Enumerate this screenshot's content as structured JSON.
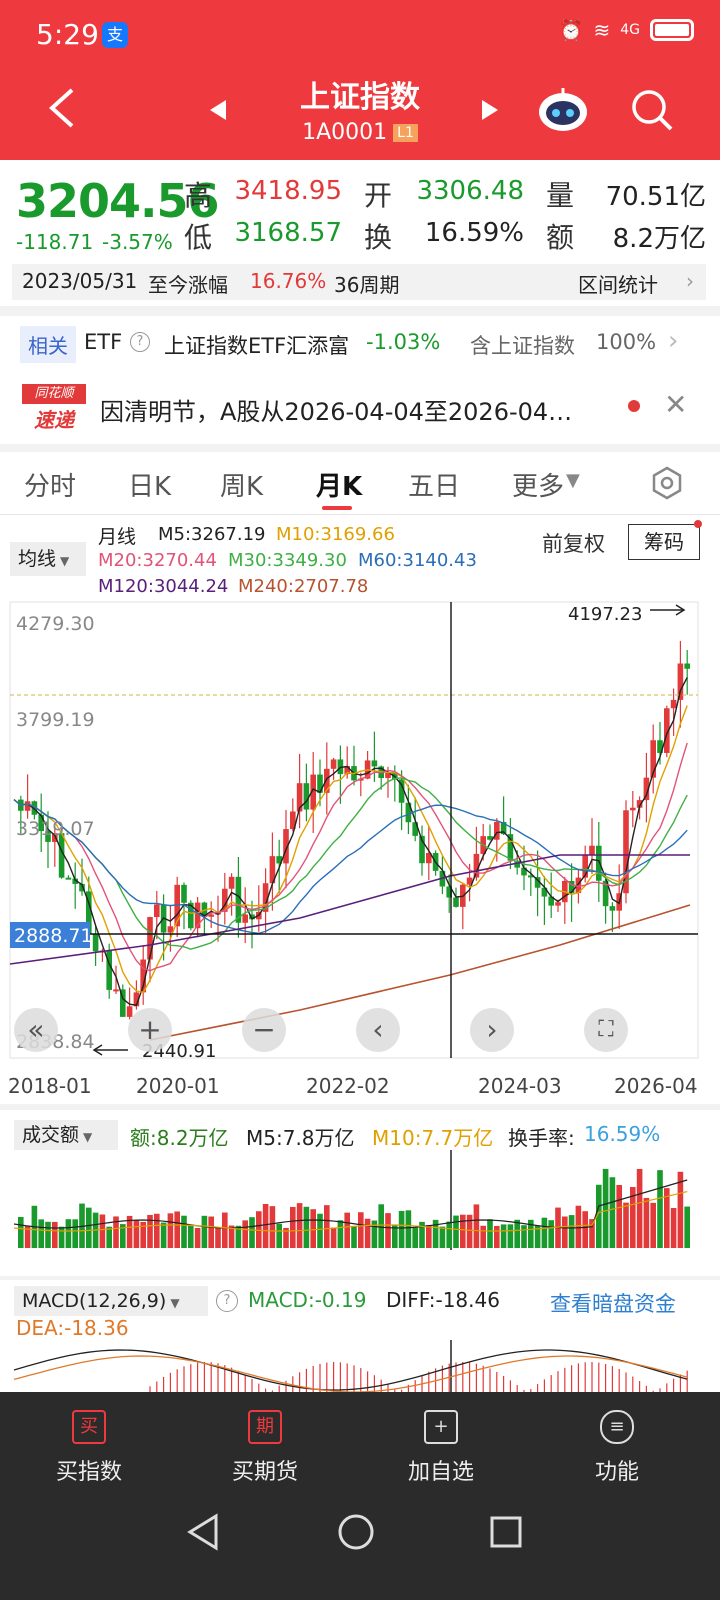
{
  "status_bar": {
    "time": "5:29",
    "app_badge": "支",
    "network": "4G"
  },
  "header": {
    "title": "上证指数",
    "code": "1A0001",
    "level": "L1"
  },
  "quote": {
    "price": "3204.56",
    "change": "-118.71",
    "change_pct": "-3.57%",
    "labels": {
      "high": "高",
      "low": "低",
      "open": "开",
      "turnover": "换",
      "volume": "量",
      "amount": "额"
    },
    "high": "3418.95",
    "low": "3168.57",
    "open": "3306.48",
    "turnover_rate": "16.59%",
    "volume": "70.51亿",
    "amount": "8.2万亿"
  },
  "range_bar": {
    "date": "2023/05/31",
    "label": "至今涨幅",
    "pct": "16.76%",
    "periods": "36周期",
    "stats": "区间统计"
  },
  "etf": {
    "tag": "相关",
    "label": "ETF",
    "name": "上证指数ETF汇添富",
    "change": "-1.03%",
    "holding": "含上证指数",
    "holding_pct": "100%"
  },
  "news": {
    "logo_top": "同花顺",
    "logo_bottom": "速递",
    "text": "因清明节，A股从2026-04-04至2026-04…"
  },
  "tabs": [
    "分时",
    "日K",
    "周K",
    "月K",
    "五日",
    "更多"
  ],
  "active_tab": "月K",
  "ma_panel": {
    "selector": "均线",
    "period": "月线",
    "ma5": "M5:3267.19",
    "ma10": "M10:3169.66",
    "ma20": "M20:3270.44",
    "ma30": "M30:3349.30",
    "ma60": "M60:3140.43",
    "ma120": "M120:3044.24",
    "ma240": "M240:2707.78",
    "adjust": "前复权",
    "chips": "筹码"
  },
  "chart": {
    "y_labels": [
      "4279.30",
      "3799.19",
      "3319.07",
      "2838.84"
    ],
    "crosshair_value": "2888.71",
    "max_label": "4197.23",
    "min_label": "2440.91",
    "x_labels": [
      "2018-01",
      "2020-01",
      "2022-02",
      "2024-03",
      "2026-04"
    ]
  },
  "volume_panel": {
    "selector": "成交额",
    "amount": "额:8.2万亿",
    "m5": "M5:7.8万亿",
    "m10": "M10:7.7万亿",
    "turnover_label": "换手率:",
    "turnover": "16.59%"
  },
  "macd_panel": {
    "selector": "MACD(12,26,9)",
    "macd": "MACD:-0.19",
    "diff": "DIFF:-18.46",
    "dea": "DEA:-18.36",
    "link": "查看暗盘资金"
  },
  "bottom_bar": [
    {
      "label": "买指数",
      "icon": "买"
    },
    {
      "label": "买期货",
      "icon": "期"
    },
    {
      "label": "加自选",
      "icon": "+"
    },
    {
      "label": "功能",
      "icon": "≡"
    }
  ],
  "colors": {
    "up": "#e23a3a",
    "down": "#1a9a2d",
    "brand": "#ee3a3e"
  }
}
